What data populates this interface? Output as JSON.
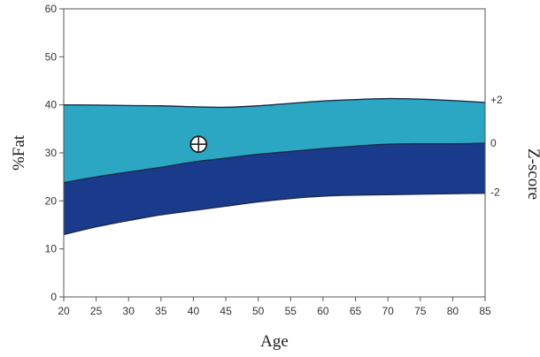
{
  "chart_data": {
    "type": "area",
    "xlabel": "Age",
    "ylabel": "%Fat",
    "y2label": "Z-score",
    "xlim": [
      20,
      85
    ],
    "ylim": [
      0,
      60
    ],
    "x_ticks": [
      "20",
      "25",
      "30",
      "35",
      "40",
      "45",
      "50",
      "55",
      "60",
      "65",
      "70",
      "75",
      "80",
      "85"
    ],
    "y_ticks": [
      "0",
      "10",
      "20",
      "30",
      "40",
      "50",
      "60"
    ],
    "x": [
      20,
      25,
      30,
      35,
      40,
      45,
      50,
      55,
      60,
      65,
      70,
      75,
      80,
      85
    ],
    "series": [
      {
        "values": [
          13.0,
          14.6,
          15.9,
          17.1,
          18.0,
          18.9,
          19.8,
          20.5,
          21.0,
          21.2,
          21.3,
          21.4,
          21.5,
          21.6
        ]
      },
      {
        "values": [
          23.8,
          25.0,
          26.0,
          27.0,
          28.1,
          28.9,
          29.7,
          30.3,
          30.9,
          31.4,
          31.8,
          31.9,
          31.9,
          32.0
        ]
      },
      {
        "values": [
          40.0,
          39.95,
          39.85,
          39.8,
          39.6,
          39.5,
          39.8,
          40.3,
          40.8,
          41.1,
          41.3,
          41.2,
          40.9,
          40.5
        ]
      }
    ],
    "z_scores": [
      {
        "label": "+2",
        "value": 41.0
      },
      {
        "label": "0",
        "value": 32.0
      },
      {
        "label": "-2",
        "value": 21.8
      }
    ],
    "marker": {
      "x": 40.8,
      "y": 31.8
    },
    "colors": {
      "upper_band": "#2ba7c4",
      "lower_band": "#1a3a8c",
      "line": "#1a2c4a"
    },
    "grid": false
  }
}
